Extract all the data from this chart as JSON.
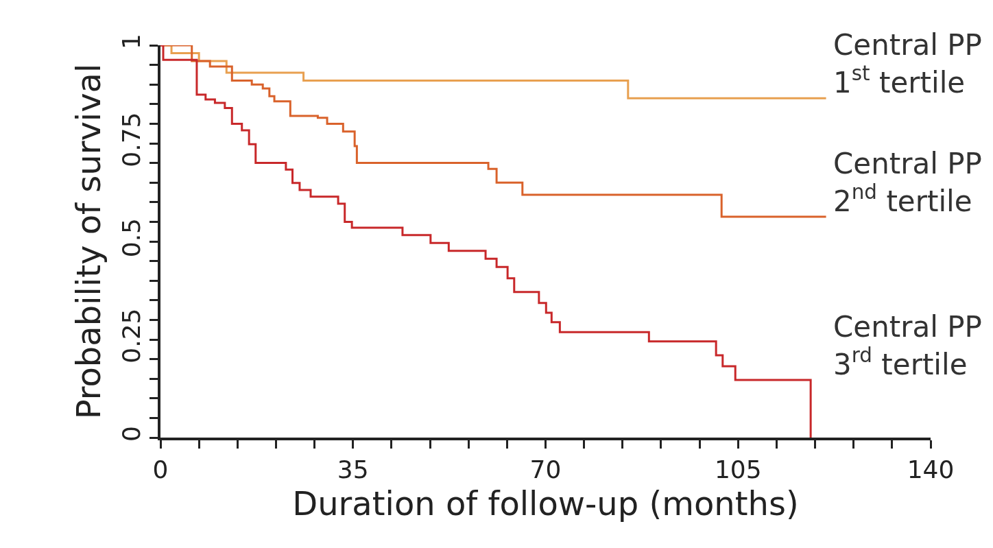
{
  "chart_data": {
    "type": "step",
    "xlabel": "Duration of follow-up (months)",
    "ylabel": "Probability of survival",
    "xlim": [
      0,
      140
    ],
    "ylim": [
      0,
      1
    ],
    "xticks": [
      0,
      {
        "value": 7,
        "label": null
      },
      {
        "value": 14,
        "label": null
      },
      {
        "value": 21,
        "label": null
      },
      {
        "value": 28,
        "label": null
      },
      35,
      {
        "value": 42,
        "label": null
      },
      {
        "value": 49,
        "label": null
      },
      {
        "value": 56,
        "label": null
      },
      {
        "value": 63,
        "label": null
      },
      70,
      {
        "value": 77,
        "label": null
      },
      {
        "value": 84,
        "label": null
      },
      {
        "value": 91,
        "label": null
      },
      {
        "value": 98,
        "label": null
      },
      105,
      {
        "value": 112,
        "label": null
      },
      {
        "value": 119,
        "label": null
      },
      {
        "value": 126,
        "label": null
      },
      {
        "value": 133,
        "label": null
      },
      140
    ],
    "yticks": [
      0,
      {
        "value": 0.05,
        "label": null
      },
      {
        "value": 0.1,
        "label": null
      },
      {
        "value": 0.15,
        "label": null
      },
      {
        "value": 0.2,
        "label": null
      },
      0.25,
      {
        "value": 0.3,
        "label": null
      },
      {
        "value": 0.35,
        "label": null
      },
      {
        "value": 0.4,
        "label": null
      },
      {
        "value": 0.45,
        "label": null
      },
      0.5,
      {
        "value": 0.55,
        "label": null
      },
      {
        "value": 0.6,
        "label": null
      },
      {
        "value": 0.65,
        "label": null
      },
      {
        "value": 0.7,
        "label": null
      },
      0.75,
      {
        "value": 0.8,
        "label": null
      },
      {
        "value": 0.85,
        "label": null
      },
      {
        "value": 0.9,
        "label": null
      },
      {
        "value": 0.95,
        "label": null
      },
      1
    ],
    "grid": false,
    "legend": false,
    "marker": "none",
    "line_style": "solid",
    "series": [
      {
        "name": "Central PP\n1$^{st}$ tertile",
        "color": "#e8a050",
        "x": [
          0,
          2,
          7,
          12,
          26,
          85,
          121
        ],
        "values": [
          1,
          0.98,
          0.96,
          0.93,
          0.91,
          0.865,
          0.865
        ]
      },
      {
        "name": "Central PP\n2$^{nd}$ tertile",
        "color": "#d9622b",
        "x": [
          0,
          5.7,
          9,
          13,
          16.6,
          18.6,
          19.8,
          20.7,
          23.6,
          28.6,
          30.3,
          33.2,
          35.3,
          35.7,
          59.6,
          61.1,
          65.8,
          102,
          121
        ],
        "values": [
          1,
          0.96,
          0.946,
          0.91,
          0.9,
          0.89,
          0.87,
          0.857,
          0.82,
          0.815,
          0.8,
          0.78,
          0.743,
          0.7,
          0.685,
          0.65,
          0.619,
          0.563,
          0.563
        ]
      },
      {
        "name": "Central PP\n3$^{rd}$ tertile",
        "color": "#c8282a",
        "x": [
          0,
          0.5,
          6.6,
          8.2,
          9.9,
          11.7,
          13,
          14.8,
          16.1,
          17.3,
          22.8,
          24,
          25.3,
          27.3,
          32.3,
          33.5,
          34.8,
          44,
          49.1,
          52.4,
          59.1,
          61.1,
          63.1,
          64.3,
          68.8,
          70.1,
          71.1,
          72.6,
          88.8,
          101,
          102.2,
          104.5,
          118.2
        ],
        "values": [
          1,
          0.963,
          0.874,
          0.862,
          0.853,
          0.84,
          0.8,
          0.783,
          0.748,
          0.7,
          0.683,
          0.649,
          0.631,
          0.614,
          0.596,
          0.55,
          0.535,
          0.516,
          0.496,
          0.476,
          0.456,
          0.435,
          0.406,
          0.371,
          0.343,
          0.318,
          0.294,
          0.269,
          0.245,
          0.21,
          0.182,
          0.147,
          0
        ]
      }
    ]
  }
}
